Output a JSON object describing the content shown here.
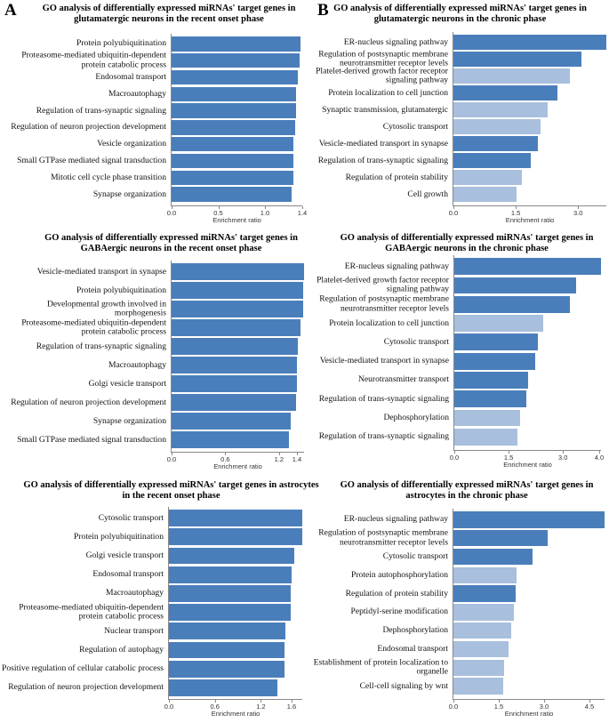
{
  "panel_labels": [
    "A",
    "B"
  ],
  "chart_data": [
    {
      "type": "bar",
      "orientation": "horizontal",
      "title": "GO analysis of differentially expressed miRNAs' target genes in glutamatergic neurons in the recent onset phase",
      "categories": [
        "Protein polyubiquitination",
        "Proteasome-mediated ubiquitin-dependent protein catabolic process",
        "Endosomal transport",
        "Macroautophagy",
        "Regulation of trans-synaptic signaling",
        "Regulation of neuron projection development",
        "Vesicle organization",
        "Small GTPase mediated signal transduction",
        "Mitotic cell cycle phase transition",
        "Synapse organization"
      ],
      "values": [
        1.38,
        1.37,
        1.35,
        1.33,
        1.33,
        1.32,
        1.3,
        1.3,
        1.3,
        1.29
      ],
      "colors": [
        "#4a7ebb",
        "#4a7ebb",
        "#4a7ebb",
        "#4a7ebb",
        "#4a7ebb",
        "#4a7ebb",
        "#4a7ebb",
        "#4a7ebb",
        "#4a7ebb",
        "#4a7ebb"
      ],
      "xlim": [
        0,
        1.4
      ],
      "xticks": [
        {
          "value": 0,
          "label": "0.0"
        },
        0.5,
        {
          "value": 1,
          "label": "1.0"
        },
        1.4
      ],
      "xlabel": "Enrichment ratio"
    },
    {
      "type": "bar",
      "orientation": "horizontal",
      "title": "GO analysis of differentially expressed miRNAs' target genes in glutamatergic neurons in the chronic phase",
      "categories": [
        "ER-nucleus signaling pathway",
        "Regulation of postsynaptic membrane neurotransmitter receptor levels",
        "Platelet-derived growth factor receptor signaling pathway",
        "Protein localization to cell junction",
        "Synaptic transmission, glutamatergic",
        "Cytosolic transport",
        "Vesicle-mediated transport in synapse",
        "Regulation of trans-synaptic signaling",
        "Regulation of protein stability",
        "Cell growth"
      ],
      "values": [
        3.68,
        3.08,
        2.81,
        2.51,
        2.27,
        2.1,
        2.03,
        1.86,
        1.65,
        1.52
      ],
      "colors": [
        "#4a7ebb",
        "#4a7ebb",
        "#a8bfdd",
        "#4a7ebb",
        "#a8bfdd",
        "#a8bfdd",
        "#4a7ebb",
        "#4a7ebb",
        "#a8bfdd",
        "#a8bfdd"
      ],
      "xlim": [
        0,
        3.68
      ],
      "xticks": [
        {
          "value": 0,
          "label": "0.0"
        },
        1.5,
        {
          "value": 3,
          "label": "3.0"
        }
      ],
      "xlabel": "Enrichment ratio"
    },
    {
      "type": "bar",
      "orientation": "horizontal",
      "title": "GO analysis of differentially expressed miRNAs' target genes in GABAergic neurons in the recent onset phase",
      "categories": [
        "Vesicle-mediated transport in synapse",
        "Protein polyubiquitination",
        "Developmental growth involved in morphogenesis",
        "Proteasome-mediated ubiquitin-dependent protein catabolic process",
        "Regulation of trans-synaptic signaling",
        "Macroautophagy",
        "Golgi vesicle transport",
        "Regulation of neuron projection development",
        "Synapse organization",
        "Small GTPase mediated signal transduction"
      ],
      "values": [
        1.48,
        1.47,
        1.47,
        1.44,
        1.41,
        1.4,
        1.4,
        1.39,
        1.33,
        1.31
      ],
      "colors": [
        "#4a7ebb",
        "#4a7ebb",
        "#4a7ebb",
        "#4a7ebb",
        "#4a7ebb",
        "#4a7ebb",
        "#4a7ebb",
        "#4a7ebb",
        "#4a7ebb",
        "#4a7ebb"
      ],
      "xlim": [
        0,
        1.48
      ],
      "xticks": [
        {
          "value": 0,
          "label": "0.0"
        },
        0.6,
        1.2,
        1.4
      ],
      "xlabel": "Enrichment ratio"
    },
    {
      "type": "bar",
      "orientation": "horizontal",
      "title": "GO analysis of differentially expressed miRNAs' target genes in GABAergic neurons in the chronic phase",
      "categories": [
        "ER-nucleus signaling pathway",
        "Platelet-derived growth factor receptor signaling pathway",
        "Regulation of postsynaptic membrane neurotransmitter receptor levels",
        "Protein localization to cell junction",
        "Cytosolic transport",
        "Vesicle-mediated transport in synapse",
        "Neurotransmitter transport",
        "Regulation of trans-synaptic signaling",
        "Dephosphorylation",
        "Regulation of trans-synaptic signaling"
      ],
      "values": [
        4.05,
        3.36,
        3.19,
        2.45,
        2.31,
        2.23,
        2.04,
        1.99,
        1.82,
        1.74
      ],
      "colors": [
        "#4a7ebb",
        "#4a7ebb",
        "#4a7ebb",
        "#a8bfdd",
        "#4a7ebb",
        "#4a7ebb",
        "#4a7ebb",
        "#4a7ebb",
        "#a8bfdd",
        "#a8bfdd"
      ],
      "xlim": [
        0,
        4.05
      ],
      "xticks": [
        {
          "value": 0,
          "label": "0.0"
        },
        1.5,
        {
          "value": 3,
          "label": "3.0"
        },
        {
          "value": 4,
          "label": "4.0"
        }
      ],
      "xlabel": "Enrichment ratio"
    },
    {
      "type": "bar",
      "orientation": "horizontal",
      "title": "GO analysis of differentially expressed miRNAs' target genes in astrocytes in the recent onset phase",
      "categories": [
        "Cytosolic transport",
        "Protein polyubiquitination",
        "Golgi vesicle transport",
        "Endosomal transport",
        "Macroautophagy",
        "Proteasome-mediated ubiquitin-dependent protein catabolic process",
        "Nuclear transport",
        "Regulation of autophagy",
        "Positive regulation of cellular catabolic process",
        "Regulation of neuron projection development"
      ],
      "values": [
        1.74,
        1.74,
        1.64,
        1.6,
        1.59,
        1.59,
        1.52,
        1.51,
        1.51,
        1.41
      ],
      "colors": [
        "#4a7ebb",
        "#4a7ebb",
        "#4a7ebb",
        "#4a7ebb",
        "#4a7ebb",
        "#4a7ebb",
        "#4a7ebb",
        "#4a7ebb",
        "#4a7ebb",
        "#4a7ebb"
      ],
      "xlim": [
        0,
        1.74
      ],
      "xticks": [
        {
          "value": 0,
          "label": "0.0"
        },
        0.6,
        1.2,
        1.6
      ],
      "xlabel": "Enrichment ratio"
    },
    {
      "type": "bar",
      "orientation": "horizontal",
      "title": "GO analysis of differentially expressed miRNAs' target genes in astrocytes in the chronic phase",
      "categories": [
        "ER-nucleus signaling pathway",
        "Regulation of postsynaptic membrane neurotransmitter receptor levels",
        "Cytosolic transport",
        "Protein autophosphorylation",
        "Regulation of protein stability",
        "Peptidyl-serine modification",
        "Dephosphorylation",
        "Endosomal transport",
        "Establishment of protein localization to organelle",
        "Cell-cell signaling by wnt"
      ],
      "values": [
        5.0,
        3.12,
        2.62,
        2.09,
        2.06,
        2.0,
        1.91,
        1.82,
        1.68,
        1.65
      ],
      "colors": [
        "#4a7ebb",
        "#4a7ebb",
        "#4a7ebb",
        "#a8bfdd",
        "#4a7ebb",
        "#a8bfdd",
        "#a8bfdd",
        "#a8bfdd",
        "#a8bfdd",
        "#a8bfdd"
      ],
      "xlim": [
        0,
        5.0
      ],
      "xticks": [
        {
          "value": 0,
          "label": "0.0"
        },
        1.5,
        {
          "value": 3,
          "label": "3.0"
        },
        4.5
      ],
      "xlabel": "Enrichment ratio"
    }
  ]
}
